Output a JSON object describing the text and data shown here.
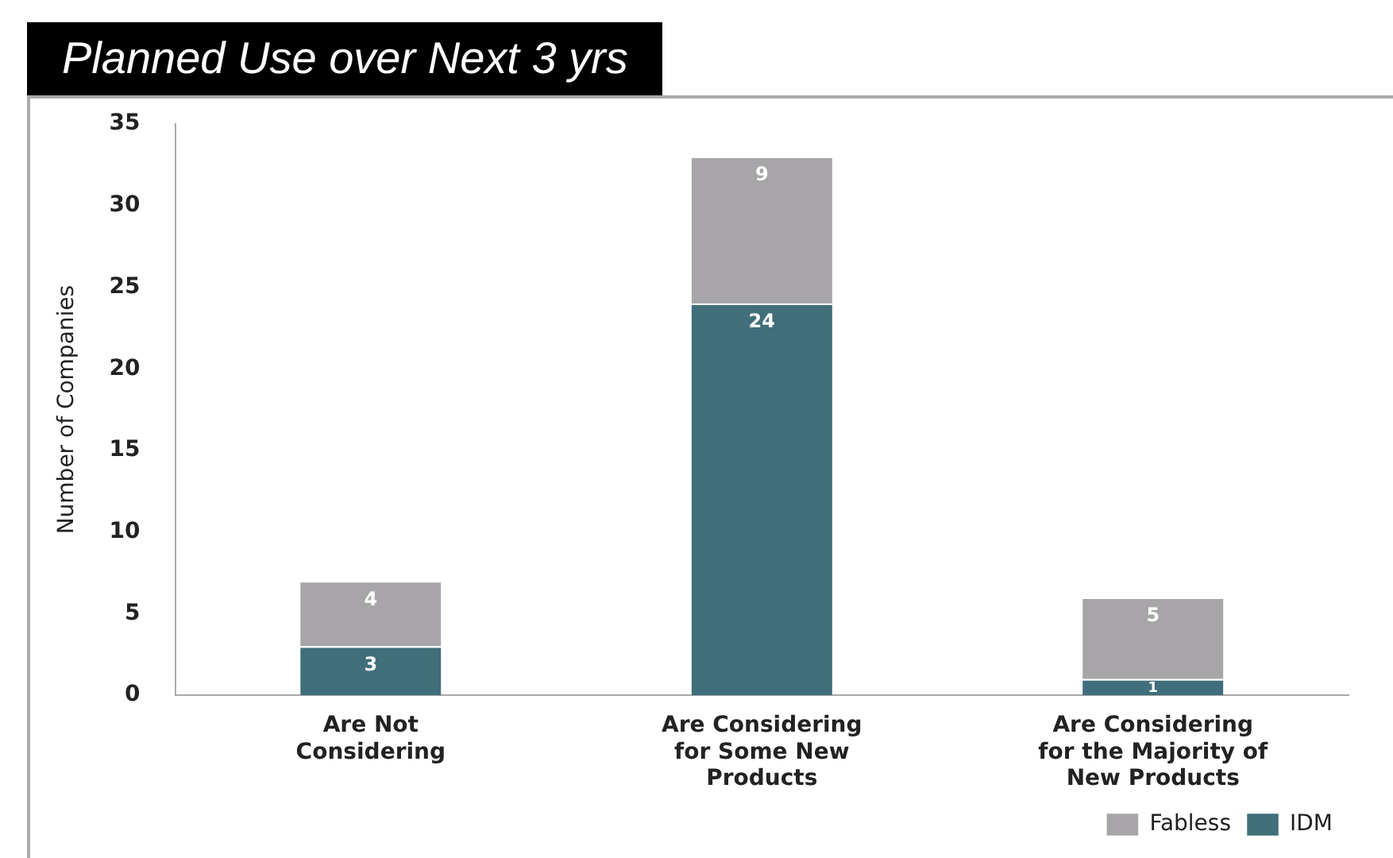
{
  "chart_data": {
    "type": "bar",
    "title": "Planned Use over Next 3 yrs",
    "ylabel": "Number of Companies",
    "categories": [
      "Are Not Considering",
      "Are Considering for Some New Products",
      "Are Considering for the Majority of New Products"
    ],
    "stacked": true,
    "data_labels": true,
    "legend": "bottom right",
    "series": [
      {
        "name": "IDM",
        "color": "#416e7b",
        "values": [
          3,
          24,
          1
        ]
      },
      {
        "name": "Fabless",
        "color": "#a7a5a8",
        "values": [
          4,
          9,
          5
        ]
      }
    ],
    "ylim": [
      0,
      35
    ],
    "yticks": [
      0,
      5,
      10,
      15,
      20,
      25,
      30,
      35
    ],
    "grid": false
  }
}
